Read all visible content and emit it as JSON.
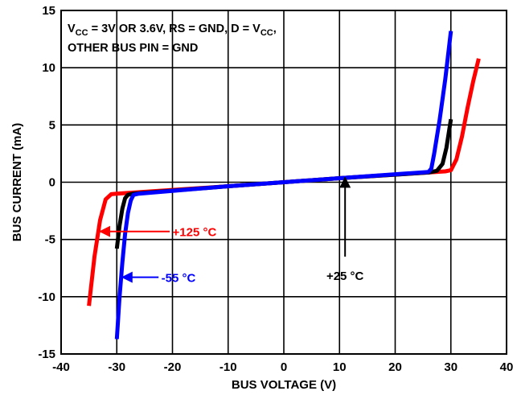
{
  "chart_data": {
    "type": "line",
    "title": "",
    "xlabel": "BUS VOLTAGE (V)",
    "ylabel": "BUS CURRENT (mA)",
    "xlim": [
      -40,
      40
    ],
    "ylim": [
      -15,
      15
    ],
    "xticks": [
      "-40",
      "-30",
      "-20",
      "-10",
      "0",
      "10",
      "20",
      "30",
      "40"
    ],
    "yticks": [
      "15",
      "10",
      "5",
      "0",
      "-5",
      "-10",
      "-15"
    ],
    "grid": true,
    "conditions": {
      "line1": {
        "vcc": "V",
        "vcc_sub": "CC",
        "mid": " = 3V OR 3.6V, RS = GND, D = V",
        "d_sub": "CC",
        "end": ","
      },
      "line2": "OTHER BUS PIN = GND"
    },
    "series": [
      {
        "name": "+125 °C",
        "color": "#ff0000",
        "points": [
          [
            -35,
            -10.8
          ],
          [
            -34,
            -6.5
          ],
          [
            -33,
            -3.3
          ],
          [
            -32,
            -1.5
          ],
          [
            -31,
            -1.05
          ],
          [
            -30,
            -1.0
          ],
          [
            -10,
            -0.35
          ],
          [
            0,
            0
          ],
          [
            10,
            0.35
          ],
          [
            29,
            0.95
          ],
          [
            30,
            1.05
          ],
          [
            31,
            2.0
          ],
          [
            32,
            4.0
          ],
          [
            33,
            6.5
          ],
          [
            34,
            8.8
          ],
          [
            35,
            10.8
          ]
        ]
      },
      {
        "name": "+25 °C",
        "color": "#000000",
        "points": [
          [
            -30,
            -5.8
          ],
          [
            -29.5,
            -3.8
          ],
          [
            -29,
            -2.3
          ],
          [
            -28.5,
            -1.4
          ],
          [
            -28,
            -1.1
          ],
          [
            -27,
            -1.0
          ],
          [
            -10,
            -0.35
          ],
          [
            0,
            0
          ],
          [
            10,
            0.35
          ],
          [
            26,
            0.85
          ],
          [
            27.5,
            1.0
          ],
          [
            28.5,
            1.6
          ],
          [
            29.2,
            3.0
          ],
          [
            30,
            5.5
          ]
        ]
      },
      {
        "name": "-55 °C",
        "color": "#0000ff",
        "points": [
          [
            -30,
            -13.7
          ],
          [
            -29.5,
            -10.0
          ],
          [
            -29,
            -7.0
          ],
          [
            -28.5,
            -4.5
          ],
          [
            -28,
            -2.7
          ],
          [
            -27.5,
            -1.6
          ],
          [
            -27,
            -1.1
          ],
          [
            -26,
            -1.0
          ],
          [
            -10,
            -0.35
          ],
          [
            0,
            0
          ],
          [
            10,
            0.35
          ],
          [
            26,
            0.9
          ],
          [
            26.5,
            1.2
          ],
          [
            27,
            2.5
          ],
          [
            28,
            5.5
          ],
          [
            29,
            9.0
          ],
          [
            30,
            13.2
          ]
        ]
      }
    ],
    "annotations": [
      {
        "label": "+125 °C",
        "series": "+125 °C",
        "color": "#ff0000",
        "arrow_from": [
          -20.5,
          -4.3
        ],
        "arrow_to": [
          -33,
          -4.3
        ],
        "text_at": [
          -20,
          -4.3
        ]
      },
      {
        "label": "-55 °C",
        "series": "-55 °C",
        "color": "#0000ff",
        "arrow_from": [
          -22.5,
          -8.3
        ],
        "arrow_to": [
          -29,
          -8.3
        ],
        "text_at": [
          -22,
          -8.3
        ]
      },
      {
        "label": "+25 °C",
        "series": "+25 °C",
        "color": "#000000",
        "arrow_from": [
          11,
          -6.5
        ],
        "arrow_to": [
          11,
          0.4
        ],
        "text_at": [
          11,
          -7.4
        ]
      }
    ]
  }
}
